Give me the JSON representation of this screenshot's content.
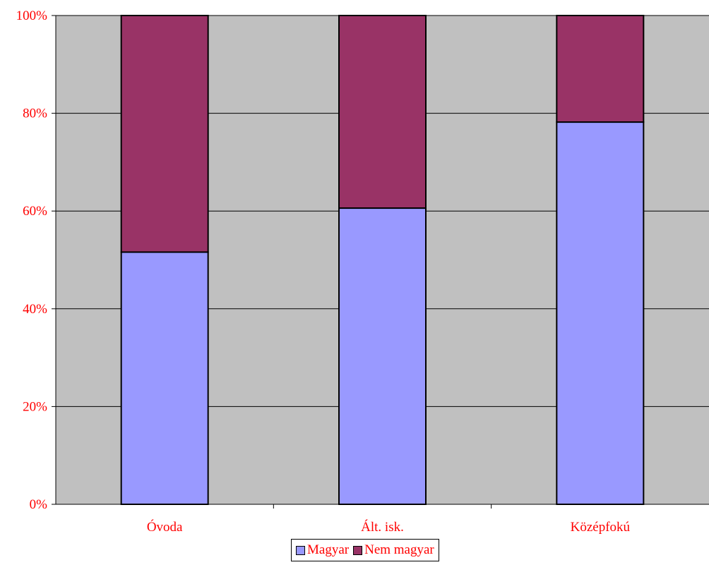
{
  "chart_data": {
    "type": "bar",
    "stacked": "percent",
    "categories": [
      "Óvoda",
      "Ált. isk.",
      "Középfokú"
    ],
    "series": [
      {
        "name": "Magyar",
        "values": [
          51.6,
          60.6,
          78.2
        ],
        "color": "#9999ff"
      },
      {
        "name": "Nem magyar",
        "values": [
          48.4,
          39.4,
          21.8
        ],
        "color": "#993366"
      }
    ],
    "y_ticks": [
      "0%",
      "20%",
      "40%",
      "60%",
      "80%",
      "100%"
    ],
    "ylim": [
      0,
      100
    ],
    "grid": true,
    "plot_background": "#c0c0c0",
    "label_color": "#ff0000",
    "legend_position": "bottom-center"
  }
}
